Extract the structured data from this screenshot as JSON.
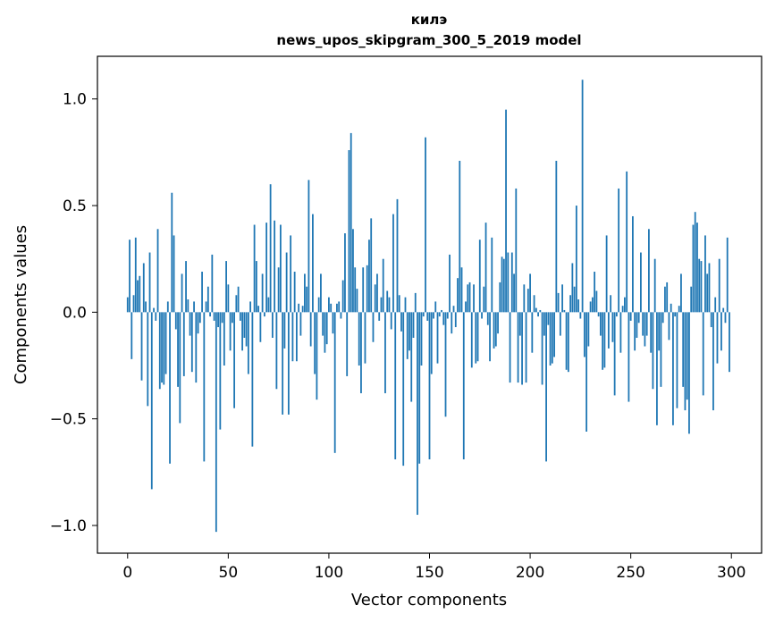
{
  "chart_data": {
    "type": "bar",
    "title": "килэ",
    "subtitle": "news_upos_skipgram_300_5_2019 model",
    "xlabel": "Vector components",
    "ylabel": "Components values",
    "xlim": [
      -15,
      315
    ],
    "ylim": [
      -1.13,
      1.2
    ],
    "xticks": [
      0,
      50,
      100,
      150,
      200,
      250,
      300
    ],
    "xtick_labels": [
      "0",
      "50",
      "100",
      "150",
      "200",
      "250",
      "300"
    ],
    "yticks": [
      -1.0,
      -0.5,
      0.0,
      0.5,
      1.0
    ],
    "ytick_labels": [
      "−1.0",
      "−0.5",
      "0.0",
      "0.5",
      "1.0"
    ],
    "bar_color": "#1f77b4",
    "grid": false,
    "series": [
      {
        "values": [
          0.07,
          0.34,
          -0.22,
          0.08,
          0.35,
          0.15,
          0.17,
          -0.32,
          0.23,
          0.05,
          -0.44,
          0.28,
          -0.83,
          0.02,
          -0.04,
          0.39,
          -0.36,
          -0.33,
          -0.34,
          -0.29,
          0.05,
          -0.71,
          0.56,
          0.36,
          -0.08,
          -0.35,
          -0.52,
          0.18,
          -0.3,
          0.24,
          0.06,
          -0.11,
          -0.28,
          0.05,
          -0.33,
          -0.1,
          -0.05,
          0.19,
          -0.7,
          0.05,
          0.12,
          -0.02,
          0.27,
          -0.04,
          -1.03,
          -0.07,
          -0.55,
          -0.05,
          -0.25,
          0.24,
          0.13,
          -0.18,
          -0.05,
          -0.45,
          0.08,
          0.12,
          -0.04,
          -0.18,
          -0.12,
          -0.16,
          -0.29,
          0.05,
          -0.63,
          0.41,
          0.24,
          0.03,
          -0.14,
          0.18,
          -0.02,
          0.42,
          0.07,
          0.6,
          -0.12,
          0.43,
          -0.36,
          0.21,
          0.41,
          -0.48,
          -0.17,
          0.28,
          -0.48,
          0.36,
          -0.23,
          0.19,
          -0.23,
          0.04,
          -0.11,
          0.03,
          0.18,
          0.12,
          0.62,
          -0.16,
          0.46,
          -0.29,
          -0.41,
          0.07,
          0.18,
          -0.11,
          -0.19,
          -0.15,
          0.07,
          0.04,
          -0.1,
          -0.66,
          0.04,
          0.05,
          -0.03,
          0.15,
          0.37,
          -0.3,
          0.76,
          0.84,
          0.39,
          0.21,
          0.11,
          -0.25,
          -0.38,
          0.21,
          -0.24,
          0.22,
          0.34,
          0.44,
          -0.14,
          0.13,
          0.18,
          -0.04,
          0.07,
          0.25,
          -0.38,
          0.1,
          0.07,
          -0.08,
          0.46,
          -0.69,
          0.53,
          0.08,
          -0.09,
          -0.72,
          0.07,
          -0.22,
          -0.18,
          -0.42,
          -0.12,
          0.09,
          -0.95,
          -0.71,
          -0.25,
          -0.02,
          0.82,
          -0.04,
          -0.69,
          -0.29,
          -0.03,
          0.05,
          -0.24,
          -0.02,
          0.01,
          -0.06,
          -0.49,
          -0.03,
          0.27,
          -0.1,
          0.03,
          -0.07,
          0.16,
          0.71,
          0.21,
          -0.69,
          0.05,
          0.13,
          0.14,
          -0.26,
          0.13,
          -0.24,
          -0.23,
          0.34,
          -0.03,
          0.12,
          0.42,
          -0.06,
          -0.23,
          0.35,
          -0.17,
          -0.16,
          -0.1,
          0.14,
          0.26,
          0.25,
          0.95,
          0.28,
          -0.33,
          0.28,
          0.18,
          0.58,
          -0.33,
          -0.11,
          -0.34,
          0.13,
          -0.33,
          0.11,
          0.18,
          -0.19,
          0.08,
          0.02,
          -0.02,
          0.01,
          -0.34,
          -0.11,
          -0.7,
          -0.06,
          -0.25,
          -0.24,
          -0.21,
          0.71,
          0.09,
          -0.11,
          0.13,
          0.01,
          -0.27,
          -0.28,
          0.08,
          0.23,
          0.12,
          0.5,
          0.06,
          -0.03,
          1.09,
          -0.21,
          -0.56,
          -0.16,
          0.05,
          0.07,
          0.19,
          0.1,
          -0.02,
          -0.11,
          -0.27,
          -0.26,
          0.36,
          -0.17,
          0.08,
          -0.14,
          -0.39,
          -0.02,
          0.58,
          -0.19,
          0.03,
          0.07,
          0.66,
          -0.42,
          -0.04,
          0.45,
          -0.18,
          -0.12,
          -0.05,
          0.28,
          -0.11,
          -0.16,
          -0.11,
          0.39,
          -0.19,
          -0.36,
          0.25,
          -0.53,
          -0.18,
          -0.35,
          -0.05,
          0.12,
          0.14,
          -0.13,
          0.04,
          -0.53,
          -0.02,
          -0.45,
          0.03,
          0.18,
          -0.35,
          -0.46,
          -0.41,
          -0.57,
          0.12,
          0.41,
          0.47,
          0.42,
          0.25,
          0.24,
          -0.39,
          0.36,
          0.18,
          0.23,
          -0.07,
          -0.46,
          0.07,
          -0.24,
          0.25,
          -0.18,
          0.02,
          -0.05,
          0.35,
          -0.28
        ]
      }
    ]
  }
}
